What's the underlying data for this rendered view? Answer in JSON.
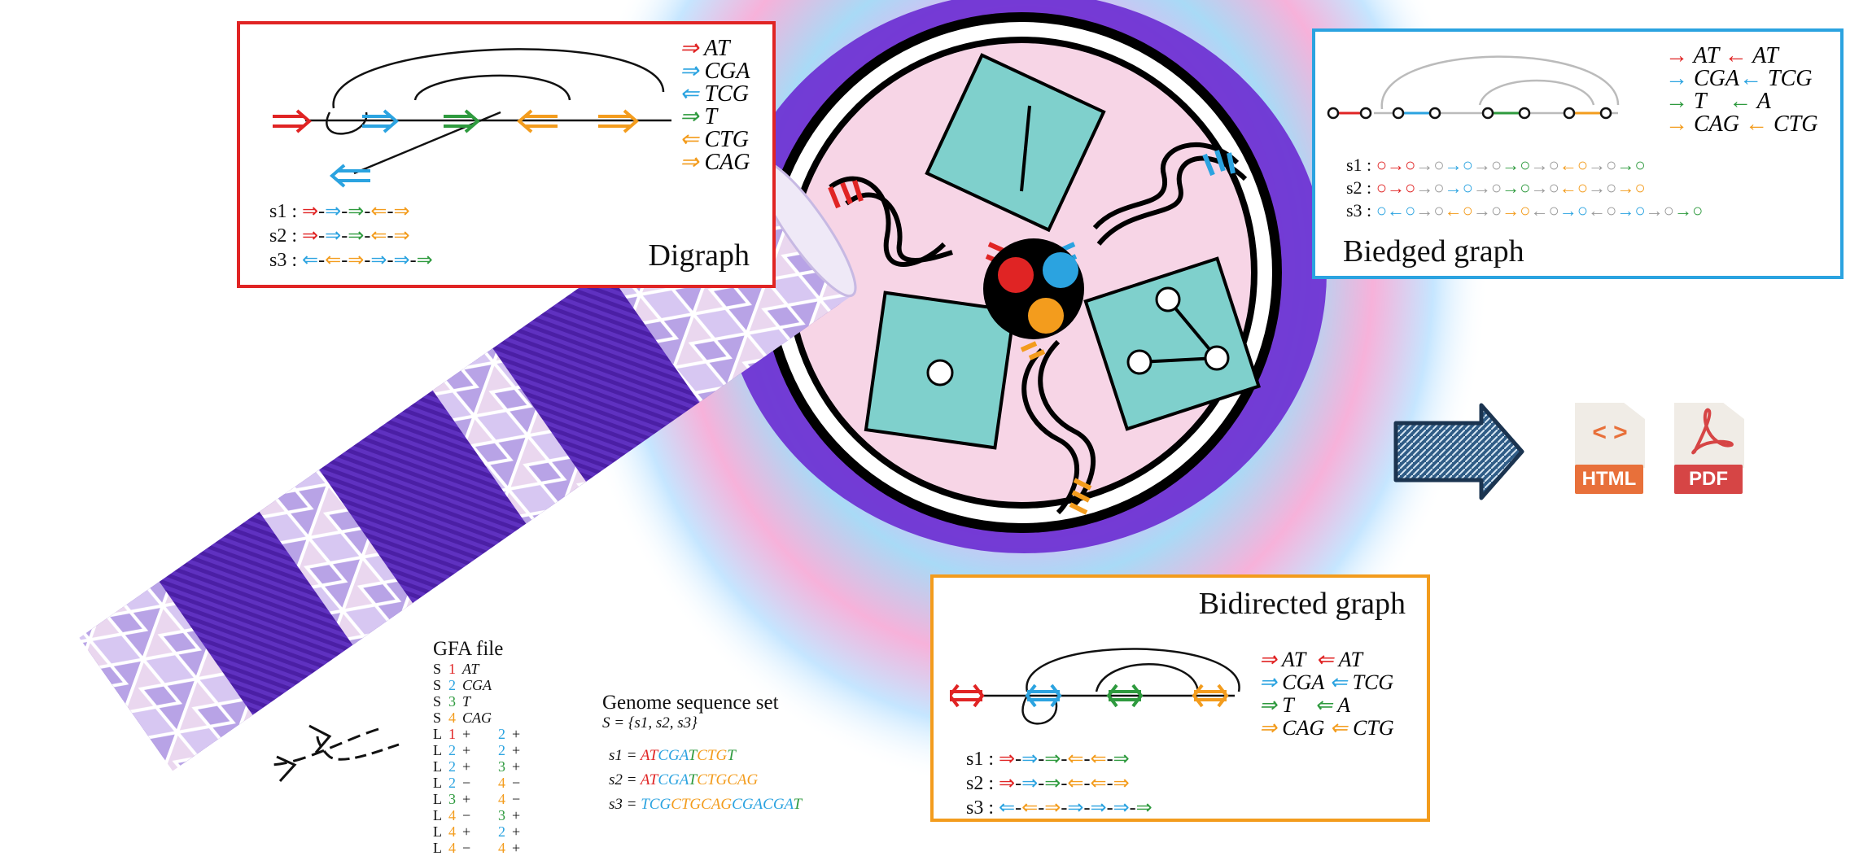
{
  "panels": {
    "digraph": {
      "title": "Digraph",
      "legend": [
        {
          "text": "AT",
          "color": "#e02424"
        },
        {
          "text": "CGA",
          "color": "#2ba3e0"
        },
        {
          "text": "TCG",
          "color": "#2ba3e0"
        },
        {
          "text": "T",
          "color": "#2e9a3e"
        },
        {
          "text": "CTG",
          "color": "#f39c1d"
        },
        {
          "text": "CAG",
          "color": "#f39c1d"
        }
      ],
      "paths": [
        "s1 :",
        "s2 :",
        "s3 :"
      ]
    },
    "biedged": {
      "title": "Biedged graph",
      "legend_left": [
        "AT",
        "CGA",
        "T",
        "CAG"
      ],
      "legend_right": [
        "AT",
        "TCG",
        "A",
        "CTG"
      ],
      "paths": [
        "s1 :",
        "s2 :",
        "s3 :"
      ]
    },
    "bidirected": {
      "title": "Bidirected graph",
      "legend_left": [
        "AT",
        "CGA",
        "T",
        "CAG"
      ],
      "legend_right": [
        "AT",
        "TCG",
        "A",
        "CTG"
      ],
      "paths": [
        "s1 :",
        "s2 :",
        "s3 :"
      ]
    }
  },
  "gfa": {
    "title": "GFA file",
    "rows": [
      [
        "S",
        "1",
        "AT",
        ""
      ],
      [
        "S",
        "2",
        "CGA",
        ""
      ],
      [
        "S",
        "3",
        "T",
        ""
      ],
      [
        "S",
        "4",
        "CAG",
        ""
      ],
      [
        "L",
        "1",
        "+",
        "2",
        "+"
      ],
      [
        "L",
        "2",
        "+",
        "2",
        "+"
      ],
      [
        "L",
        "2",
        "+",
        "3",
        "+"
      ],
      [
        "L",
        "2",
        "−",
        "4",
        "−"
      ],
      [
        "L",
        "3",
        "+",
        "4",
        "−"
      ],
      [
        "L",
        "4",
        "−",
        "3",
        "+"
      ],
      [
        "L",
        "4",
        "+",
        "2",
        "+"
      ],
      [
        "L",
        "4",
        "−",
        "4",
        "+"
      ]
    ]
  },
  "genome": {
    "title": "Genome sequence set",
    "set_def": "S = {s1, s2, s3}",
    "s1": {
      "label": "s1 = ",
      "parts": [
        "AT",
        "CGA",
        "T",
        "CTG",
        "T"
      ]
    },
    "s2": {
      "label": "s2 = ",
      "parts": [
        "AT",
        "CGA",
        "T",
        "CTG",
        "CAG"
      ]
    },
    "s3": {
      "label": "s3 = ",
      "parts": [
        "TCG",
        "CTG",
        "CAG",
        "CGA",
        "CGA",
        "T"
      ]
    }
  },
  "outputs": {
    "html_label": "HTML",
    "pdf_label": "PDF",
    "html_symbol": "< >",
    "colors": {
      "html": "#e8703a",
      "pdf": "#d64545"
    }
  },
  "colors": {
    "red": "#e02424",
    "blue": "#2ba3e0",
    "green": "#2e9a3e",
    "orange": "#f39c1d",
    "teal": "#7fd0cc",
    "purple": "#5b2bb5",
    "pink": "#f7d5e6"
  }
}
